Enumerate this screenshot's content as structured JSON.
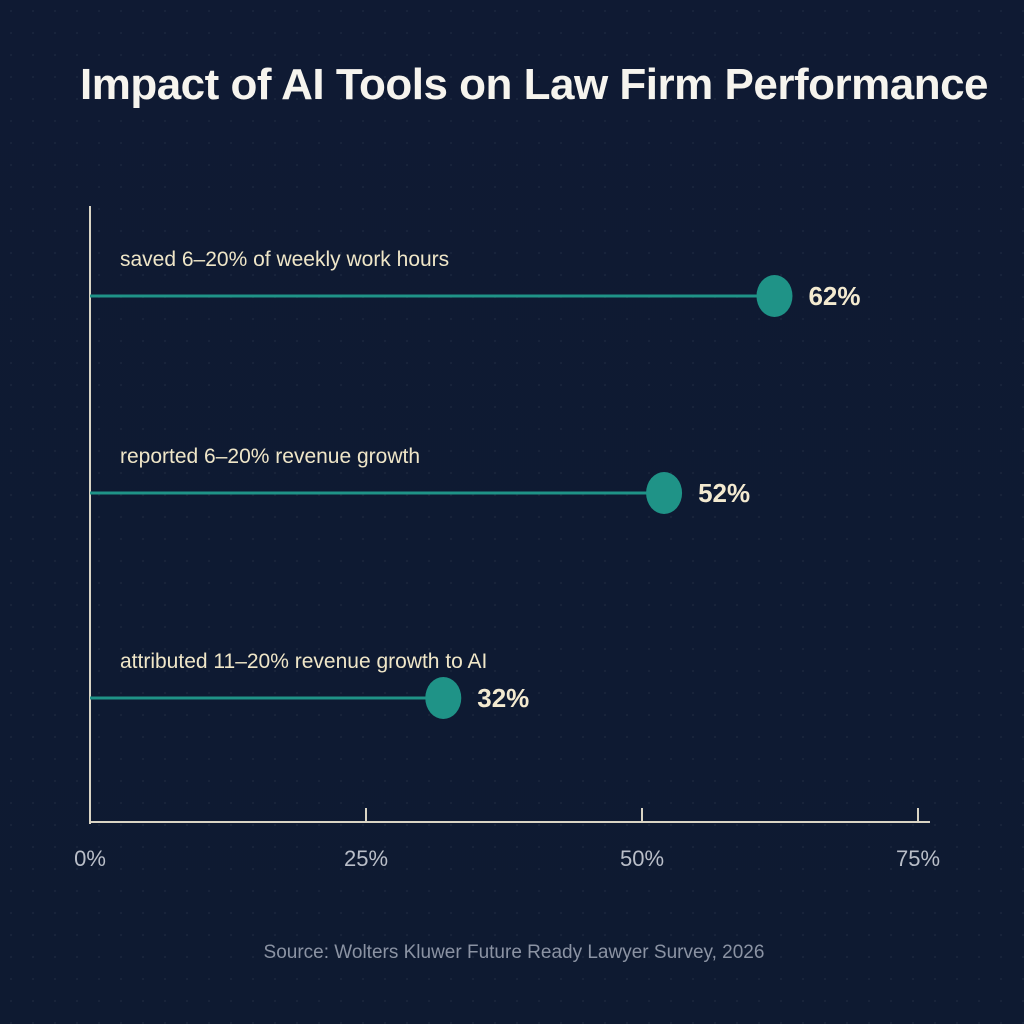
{
  "chart_data": {
    "type": "bar",
    "orientation": "horizontal",
    "style": "lollipop",
    "title": "Impact of AI Tools on Law Firm Performance",
    "categories": [
      "saved 6–20% of weekly work hours",
      "reported 6–20% revenue growth",
      "attributed 11–20% revenue growth to AI"
    ],
    "values": [
      62,
      52,
      32
    ],
    "data_labels": [
      "62%",
      "52%",
      "32%"
    ],
    "xlim": [
      0,
      75
    ],
    "x_ticks": [
      0,
      25,
      50,
      75
    ],
    "x_tick_labels": [
      "0%",
      "25%",
      "50%",
      "75%"
    ],
    "grid": false,
    "legend": "none",
    "source": "Source: Wolters Kluwer Future Ready Lawyer Survey, 2026"
  },
  "colors": {
    "background": "#0f1b33",
    "accent": "#1f9387",
    "axis": "#d9d4c4",
    "label_text": "#efe6c8",
    "title_text": "#f6f4ee",
    "muted_text": "#8b93a3"
  }
}
